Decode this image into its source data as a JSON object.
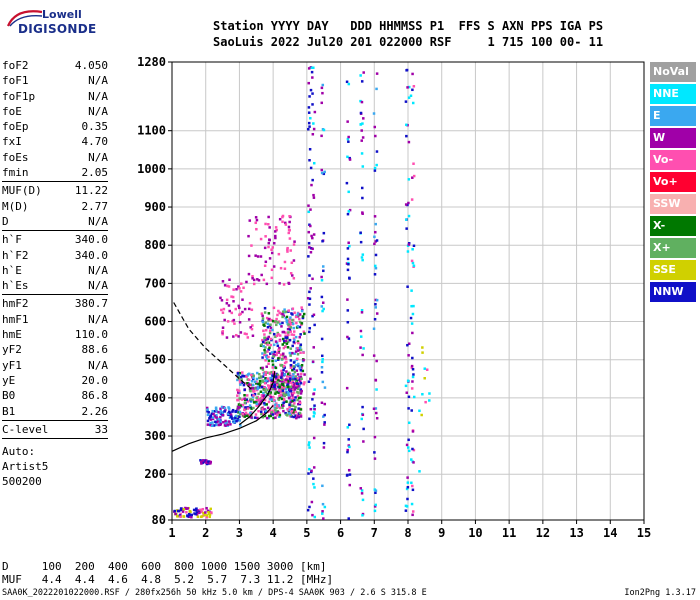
{
  "logo": {
    "top": "Lowell",
    "bottom": "DIGISONDE"
  },
  "header": {
    "line1": "Station YYYY DAY   DDD HHMMSS P1  FFS S AXN PPS IGA PS",
    "line2": "SaoLuis 2022 Jul20 201 022000 RSF     1 715 100 00- 11"
  },
  "params": [
    [
      {
        "k": "foF2",
        "v": "4.050"
      },
      {
        "k": "foF1",
        "v": "N/A"
      },
      {
        "k": "foF1p",
        "v": "N/A"
      },
      {
        "k": "foE",
        "v": "N/A"
      },
      {
        "k": "foEp",
        "v": "0.35"
      },
      {
        "k": "fxI",
        "v": "4.70"
      },
      {
        "k": "foEs",
        "v": "N/A"
      },
      {
        "k": "fmin",
        "v": "2.05"
      }
    ],
    [
      {
        "k": "MUF(D)",
        "v": "11.22"
      },
      {
        "k": "M(D)",
        "v": "2.77"
      },
      {
        "k": "D",
        "v": "N/A"
      }
    ],
    [
      {
        "k": "h`F",
        "v": "340.0"
      },
      {
        "k": "h`F2",
        "v": "340.0"
      },
      {
        "k": "h`E",
        "v": "N/A"
      },
      {
        "k": "h`Es",
        "v": "N/A"
      }
    ],
    [
      {
        "k": "hmF2",
        "v": "380.7"
      },
      {
        "k": "hmF1",
        "v": "N/A"
      },
      {
        "k": "hmE",
        "v": "110.0"
      },
      {
        "k": "yF2",
        "v": "88.6"
      },
      {
        "k": "yF1",
        "v": "N/A"
      },
      {
        "k": "yE",
        "v": "20.0"
      },
      {
        "k": "B0",
        "v": "86.8"
      },
      {
        "k": "B1",
        "v": "2.26"
      }
    ],
    [
      {
        "k": "C-level",
        "v": "33"
      }
    ]
  ],
  "auto": [
    "Auto:",
    "Artist5",
    "500200"
  ],
  "legend": [
    {
      "label": "NoVal",
      "color": "#a0a0a0"
    },
    {
      "label": "NNE",
      "color": "#00e8ff"
    },
    {
      "label": "E",
      "color": "#3aa8f0"
    },
    {
      "label": "W",
      "color": "#a000a8"
    },
    {
      "label": "Vo-",
      "color": "#ff4fb0"
    },
    {
      "label": "Vo+",
      "color": "#ff0030"
    },
    {
      "label": "SSW",
      "color": "#f8b0b0"
    },
    {
      "label": "X-",
      "color": "#007800"
    },
    {
      "label": "X+",
      "color": "#60b060"
    },
    {
      "label": "SSE",
      "color": "#d0d000"
    },
    {
      "label": "NNW",
      "color": "#1010c8"
    }
  ],
  "bottom_rows": {
    "d_row": "D     100  200  400  600  800 1000 1500 3000 [km]",
    "muf_row": "MUF   4.4  4.4  4.6  4.8  5.2  5.7  7.3 11.2 [MHz]"
  },
  "footer": "SAA0K_2022201022000.RSF / 280fx256h 50 kHz 5.0 km / DPS-4 SAA0K 903 / 2.6 S 315.8 E",
  "version": "Ion2Png 1.3.17",
  "chart_data": {
    "type": "scatter",
    "xlim": [
      1,
      15
    ],
    "ylim": [
      80,
      1280
    ],
    "x_ticks": [
      1,
      2,
      3,
      4,
      5,
      6,
      7,
      8,
      9,
      10,
      11,
      12,
      13,
      14,
      15
    ],
    "y_ticks": [
      80,
      200,
      300,
      400,
      500,
      600,
      700,
      800,
      900,
      1000,
      1100,
      1280
    ],
    "y_tick_labels": [
      "80",
      "200",
      "300",
      "400",
      "500",
      "600",
      "700",
      "800",
      "900",
      "1000",
      "1100",
      "1280"
    ],
    "grid": true,
    "series": [
      {
        "type": "line",
        "style": "solid",
        "points": [
          [
            1.0,
            260
          ],
          [
            1.5,
            280
          ],
          [
            2.0,
            295
          ],
          [
            2.5,
            305
          ],
          [
            3.0,
            320
          ],
          [
            3.5,
            340
          ],
          [
            3.8,
            360
          ],
          [
            4.0,
            380
          ]
        ]
      },
      {
        "type": "line",
        "style": "solid",
        "points": [
          [
            3.0,
            330
          ],
          [
            3.3,
            350
          ],
          [
            3.6,
            380
          ],
          [
            3.85,
            410
          ],
          [
            4.0,
            440
          ],
          [
            4.05,
            470
          ]
        ]
      },
      {
        "type": "line",
        "style": "dashed",
        "points": [
          [
            1.05,
            650
          ],
          [
            1.5,
            580
          ],
          [
            2.0,
            530
          ],
          [
            2.5,
            490
          ],
          [
            3.0,
            450
          ],
          [
            3.4,
            420
          ]
        ]
      }
    ]
  }
}
